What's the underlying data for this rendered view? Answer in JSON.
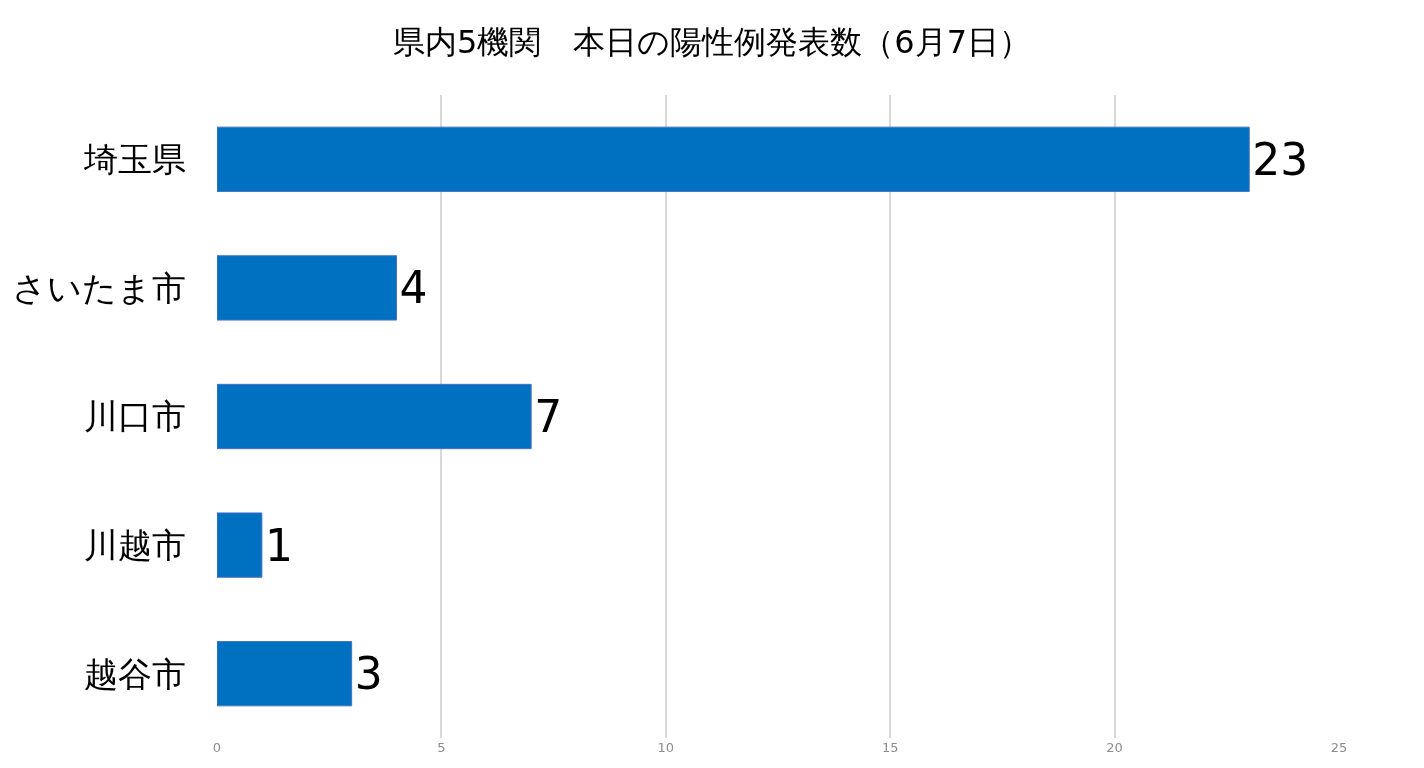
{
  "chart_data": {
    "type": "bar",
    "orientation": "horizontal",
    "title": "県内5機関　本日の陽性例発表数（6月7日）",
    "categories": [
      "埼玉県",
      "さいたま市",
      "川口市",
      "川越市",
      "越谷市"
    ],
    "values": [
      23,
      4,
      7,
      1,
      3
    ],
    "color": "#0070c0",
    "xlim": [
      0,
      25
    ],
    "xticks": [
      0,
      5,
      10,
      15,
      20,
      25
    ],
    "grid": "x",
    "data_labels": true,
    "legend": false
  }
}
